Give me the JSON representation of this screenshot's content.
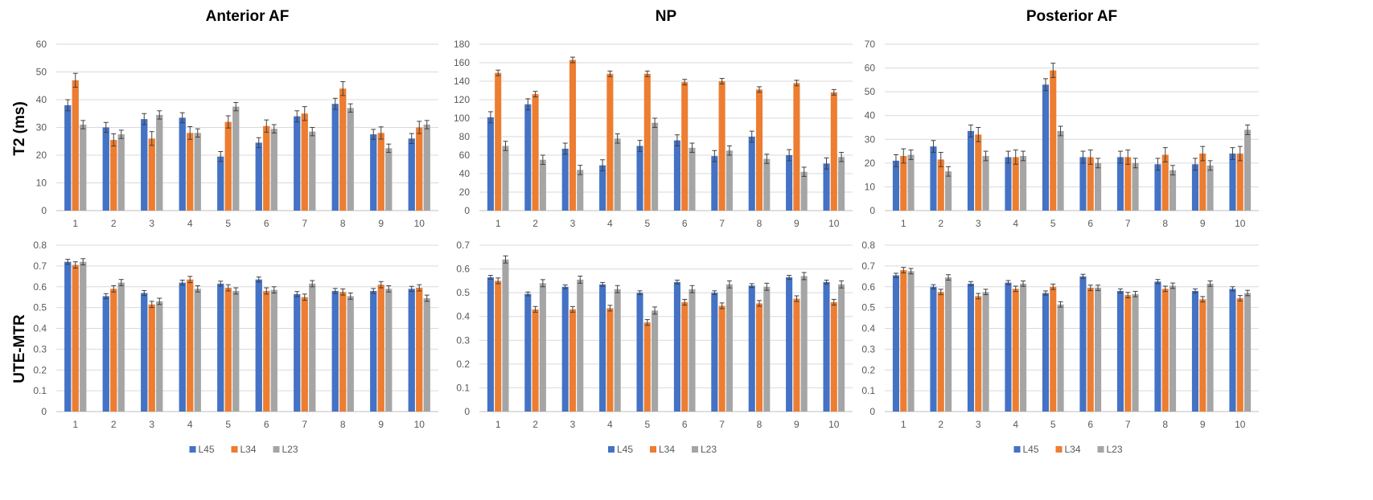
{
  "row_labels": [
    "T2 (ms)",
    "UTE-MTR"
  ],
  "chart_data": [
    {
      "type": "bar",
      "title": "Anterior AF",
      "ylabel": "T2 (ms)",
      "categories": [
        "1",
        "2",
        "3",
        "4",
        "5",
        "6",
        "7",
        "8",
        "9",
        "10"
      ],
      "ylim": [
        0,
        60
      ],
      "yticks": [
        0,
        10,
        20,
        30,
        40,
        50,
        60
      ],
      "series": [
        {
          "name": "L45",
          "color": "#4472C4",
          "values": [
            38,
            30,
            33,
            33.5,
            19.5,
            24.5,
            34,
            38.5,
            27.5,
            26
          ],
          "errors": [
            2,
            1.8,
            2,
            1.8,
            1.8,
            1.8,
            2,
            2,
            1.8,
            1.8
          ]
        },
        {
          "name": "L34",
          "color": "#ED7D31",
          "values": [
            47,
            25.5,
            26,
            28,
            32,
            30.5,
            35,
            44,
            28,
            30
          ],
          "errors": [
            2.5,
            2.2,
            2.5,
            2.3,
            2.2,
            2.2,
            2.5,
            2.5,
            2.2,
            2.2
          ]
        },
        {
          "name": "L23",
          "color": "#A5A5A5",
          "values": [
            31,
            27.5,
            34.5,
            28,
            37.5,
            29.5,
            28.5,
            37,
            22.5,
            31
          ]
        }
      ]
    },
    {
      "type": "bar",
      "title": "NP",
      "ylabel": "",
      "categories": [
        "1",
        "2",
        "3",
        "4",
        "5",
        "6",
        "7",
        "8",
        "9",
        "10"
      ],
      "ylim": [
        0,
        180
      ],
      "yticks": [
        0,
        20,
        40,
        60,
        80,
        100,
        120,
        140,
        160,
        180
      ],
      "series": [
        {
          "name": "L45",
          "color": "#4472C4",
          "values": [
            101,
            115,
            67,
            49,
            70,
            76,
            59,
            80,
            60,
            51
          ],
          "errors": [
            6,
            6,
            6,
            6,
            6,
            6,
            6,
            6,
            6,
            6
          ]
        },
        {
          "name": "L34",
          "color": "#ED7D31",
          "values": [
            149,
            126,
            163,
            148,
            148,
            139,
            140,
            131,
            138,
            128
          ],
          "errors": [
            3,
            3,
            3,
            3,
            3,
            3,
            3,
            3,
            3,
            3
          ]
        },
        {
          "name": "L23",
          "color": "#A5A5A5",
          "values": [
            70,
            55,
            44,
            78,
            95,
            68,
            65,
            56,
            42,
            58
          ],
          "errors": [
            5,
            5,
            5,
            5,
            5,
            5,
            5,
            5,
            5,
            5
          ]
        }
      ]
    },
    {
      "type": "bar",
      "title": "Posterior AF",
      "ylabel": "",
      "categories": [
        "1",
        "2",
        "3",
        "4",
        "5",
        "6",
        "7",
        "8",
        "9",
        "10"
      ],
      "ylim": [
        0,
        70
      ],
      "yticks": [
        0,
        10,
        20,
        30,
        40,
        50,
        60,
        70
      ],
      "series": [
        {
          "name": "L45",
          "color": "#4472C4",
          "values": [
            21,
            27,
            33.5,
            22.5,
            53,
            22.5,
            22.5,
            19.5,
            19.5,
            24
          ],
          "errors": [
            2.5,
            2.5,
            2.5,
            2.5,
            2.5,
            2.5,
            2.5,
            2.5,
            2.5,
            2.5
          ]
        },
        {
          "name": "L34",
          "color": "#ED7D31",
          "values": [
            23,
            21.5,
            32,
            22.5,
            59,
            22.5,
            22.5,
            23.5,
            24,
            24
          ],
          "errors": [
            3,
            3,
            3,
            3,
            3,
            3,
            3,
            3,
            3,
            3
          ]
        },
        {
          "name": "L23",
          "color": "#A5A5A5",
          "values": [
            23.5,
            16.5,
            23,
            23,
            33.5,
            20,
            20,
            17,
            19,
            34
          ],
          "errors": [
            2,
            2,
            2,
            2,
            2,
            2,
            2,
            2,
            2,
            2
          ]
        }
      ]
    },
    {
      "type": "bar",
      "title": "",
      "ylabel": "UTE-MTR",
      "categories": [
        "1",
        "2",
        "3",
        "4",
        "5",
        "6",
        "7",
        "8",
        "9",
        "10"
      ],
      "ylim": [
        0,
        0.8
      ],
      "yticks": [
        0,
        0.1,
        0.2,
        0.3,
        0.4,
        0.5,
        0.6,
        0.7,
        0.8
      ],
      "series": [
        {
          "name": "L45",
          "color": "#4472C4",
          "values": [
            0.72,
            0.555,
            0.57,
            0.62,
            0.615,
            0.635,
            0.565,
            0.58,
            0.58,
            0.59
          ],
          "errors": [
            0.012,
            0.012,
            0.012,
            0.012,
            0.012,
            0.012,
            0.012,
            0.012,
            0.012,
            0.012
          ]
        },
        {
          "name": "L34",
          "color": "#ED7D31",
          "values": [
            0.705,
            0.59,
            0.515,
            0.635,
            0.595,
            0.58,
            0.55,
            0.575,
            0.61,
            0.595
          ],
          "errors": [
            0.015,
            0.015,
            0.015,
            0.015,
            0.015,
            0.015,
            0.015,
            0.015,
            0.015,
            0.015
          ]
        },
        {
          "name": "L23",
          "color": "#A5A5A5",
          "values": [
            0.72,
            0.62,
            0.53,
            0.59,
            0.58,
            0.585,
            0.615,
            0.555,
            0.59,
            0.545
          ],
          "errors": [
            0.015,
            0.015,
            0.015,
            0.015,
            0.015,
            0.015,
            0.015,
            0.015,
            0.015,
            0.015
          ]
        }
      ]
    },
    {
      "type": "bar",
      "title": "",
      "ylabel": "",
      "categories": [
        "1",
        "2",
        "3",
        "4",
        "5",
        "6",
        "7",
        "8",
        "9",
        "10"
      ],
      "ylim": [
        0,
        0.7
      ],
      "yticks": [
        0,
        0.1,
        0.2,
        0.3,
        0.4,
        0.5,
        0.6,
        0.7
      ],
      "series": [
        {
          "name": "L45",
          "color": "#4472C4",
          "values": [
            0.565,
            0.495,
            0.525,
            0.535,
            0.5,
            0.545,
            0.5,
            0.53,
            0.565,
            0.545
          ],
          "errors": [
            0.008,
            0.008,
            0.008,
            0.008,
            0.008,
            0.008,
            0.008,
            0.008,
            0.008,
            0.008
          ]
        },
        {
          "name": "L34",
          "color": "#ED7D31",
          "values": [
            0.55,
            0.43,
            0.43,
            0.435,
            0.375,
            0.46,
            0.445,
            0.455,
            0.475,
            0.46
          ],
          "errors": [
            0.012,
            0.012,
            0.012,
            0.012,
            0.012,
            0.012,
            0.012,
            0.012,
            0.012,
            0.012
          ]
        },
        {
          "name": "L23",
          "color": "#A5A5A5",
          "values": [
            0.64,
            0.54,
            0.555,
            0.515,
            0.425,
            0.515,
            0.535,
            0.525,
            0.57,
            0.535
          ],
          "errors": [
            0.015,
            0.015,
            0.015,
            0.015,
            0.015,
            0.015,
            0.015,
            0.015,
            0.015,
            0.015
          ]
        }
      ]
    },
    {
      "type": "bar",
      "title": "",
      "ylabel": "",
      "categories": [
        "1",
        "2",
        "3",
        "4",
        "5",
        "6",
        "7",
        "8",
        "9",
        "10"
      ],
      "ylim": [
        0,
        0.8
      ],
      "yticks": [
        0,
        0.1,
        0.2,
        0.3,
        0.4,
        0.5,
        0.6,
        0.7,
        0.8
      ],
      "series": [
        {
          "name": "L45",
          "color": "#4472C4",
          "values": [
            0.655,
            0.6,
            0.615,
            0.62,
            0.57,
            0.65,
            0.58,
            0.625,
            0.58,
            0.59
          ],
          "errors": [
            0.01,
            0.01,
            0.01,
            0.01,
            0.01,
            0.01,
            0.01,
            0.01,
            0.01,
            0.01
          ]
        },
        {
          "name": "L34",
          "color": "#ED7D31",
          "values": [
            0.68,
            0.575,
            0.555,
            0.59,
            0.6,
            0.595,
            0.56,
            0.59,
            0.54,
            0.545
          ],
          "errors": [
            0.013,
            0.013,
            0.013,
            0.013,
            0.013,
            0.013,
            0.013,
            0.013,
            0.013,
            0.013
          ]
        },
        {
          "name": "L23",
          "color": "#A5A5A5",
          "values": [
            0.675,
            0.645,
            0.575,
            0.615,
            0.515,
            0.595,
            0.565,
            0.605,
            0.615,
            0.57
          ],
          "errors": [
            0.013,
            0.013,
            0.013,
            0.013,
            0.013,
            0.013,
            0.013,
            0.013,
            0.013,
            0.013
          ]
        }
      ]
    }
  ],
  "legend": [
    {
      "name": "L45",
      "color": "#4472C4"
    },
    {
      "name": "L34",
      "color": "#ED7D31"
    },
    {
      "name": "L23",
      "color": "#A5A5A5"
    }
  ]
}
